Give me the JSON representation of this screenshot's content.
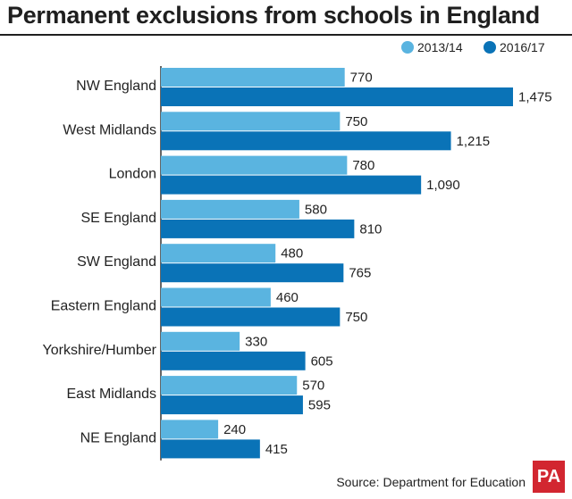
{
  "chart_data": {
    "type": "bar",
    "orientation": "horizontal",
    "title": "Permanent exclusions from schools in England",
    "categories": [
      "NW England",
      "West Midlands",
      "London",
      "SE England",
      "SW England",
      "Eastern England",
      "Yorkshire/Humber",
      "East Midlands",
      "NE England"
    ],
    "series": [
      {
        "name": "2013/14",
        "color": "#5ab4e0",
        "values": [
          770,
          750,
          780,
          580,
          480,
          460,
          330,
          570,
          240
        ],
        "labels": [
          "770",
          "750",
          "780",
          "580",
          "480",
          "460",
          "330",
          "570",
          "240"
        ]
      },
      {
        "name": "2016/17",
        "color": "#0a73b7",
        "values": [
          1475,
          1215,
          1090,
          810,
          765,
          750,
          605,
          595,
          415
        ],
        "labels": [
          "1,475",
          "1,215",
          "1,090",
          "810",
          "765",
          "750",
          "605",
          "595",
          "415"
        ]
      }
    ],
    "xlim": [
      0,
      1475
    ],
    "grid": false,
    "legend_position": "top-right"
  },
  "source": "Source: Department for Education",
  "logo": "PA"
}
